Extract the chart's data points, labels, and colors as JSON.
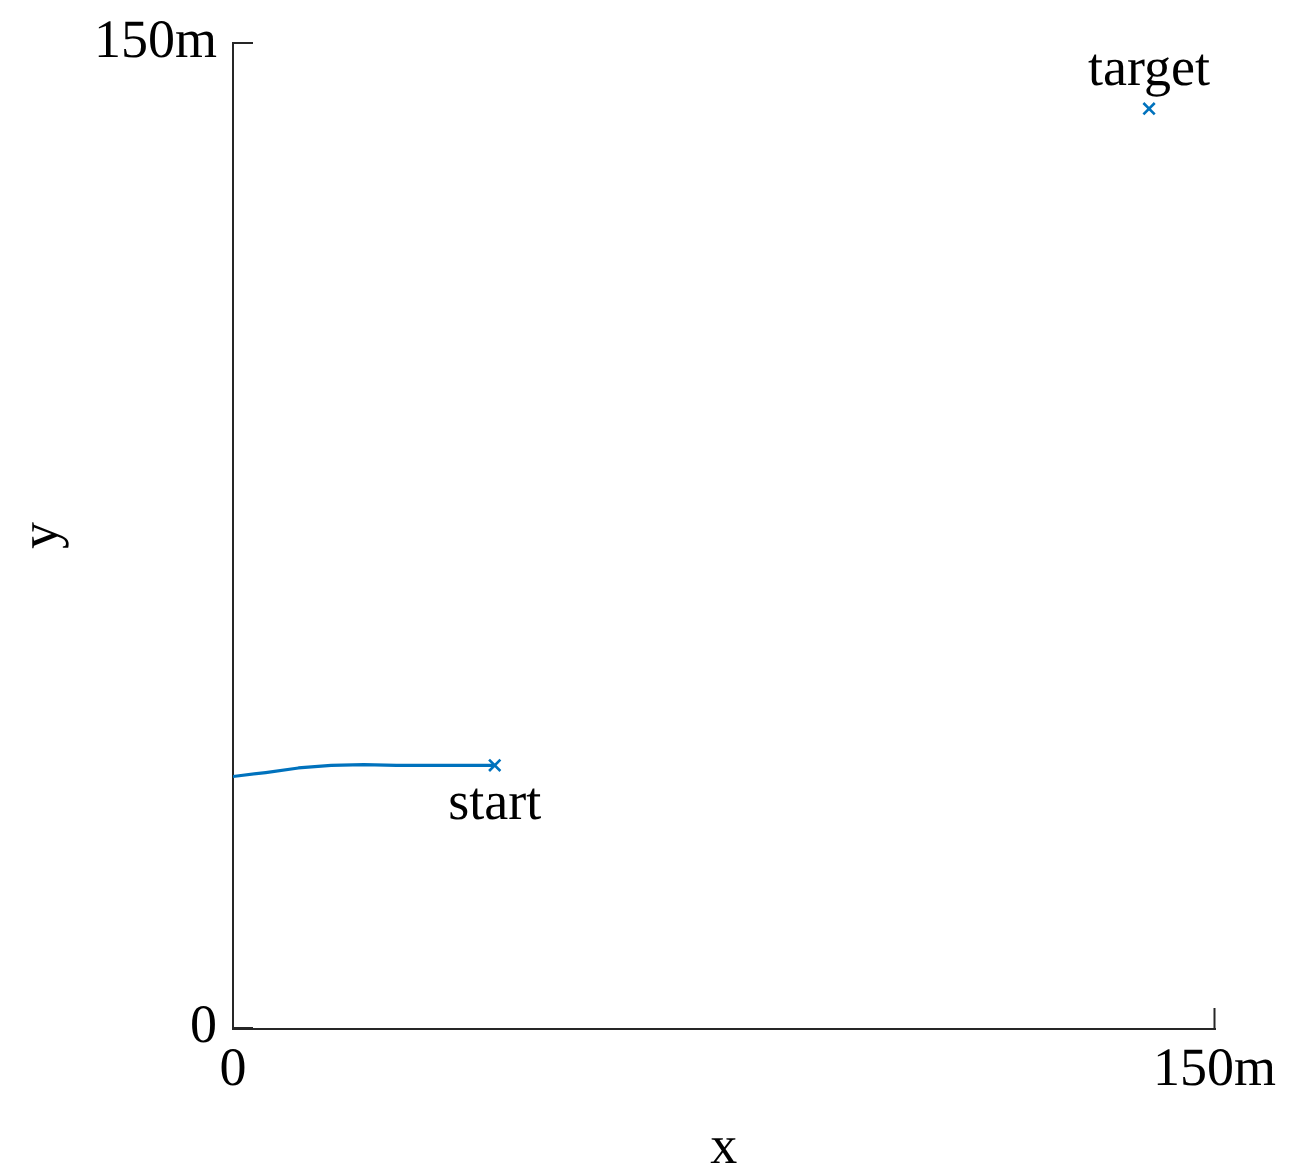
{
  "chart_data": {
    "type": "line",
    "xlabel": "x",
    "ylabel": "y",
    "xlim": [
      0,
      150
    ],
    "ylim": [
      0,
      150
    ],
    "xticks": [
      0,
      {
        "value": 150,
        "label": "150m"
      }
    ],
    "yticks": [
      0,
      {
        "value": 150,
        "label": "150m"
      }
    ],
    "marker": "cross",
    "series": [
      {
        "type": "line",
        "color": "#0072bd",
        "marker": "none",
        "x": [
          0,
          5,
          10,
          15,
          20,
          25,
          30,
          35,
          40
        ],
        "values": [
          38.3,
          38.9,
          39.6,
          40,
          40.1,
          40,
          40,
          40,
          40
        ]
      },
      {
        "type": "scatter",
        "color": "#0072bd",
        "x": [
          40,
          140
        ],
        "values": [
          40,
          140
        ]
      }
    ],
    "annotations": [
      {
        "text": "start",
        "x": 40,
        "y": 40
      },
      {
        "text": "target",
        "x": 140,
        "y": 140
      }
    ]
  }
}
